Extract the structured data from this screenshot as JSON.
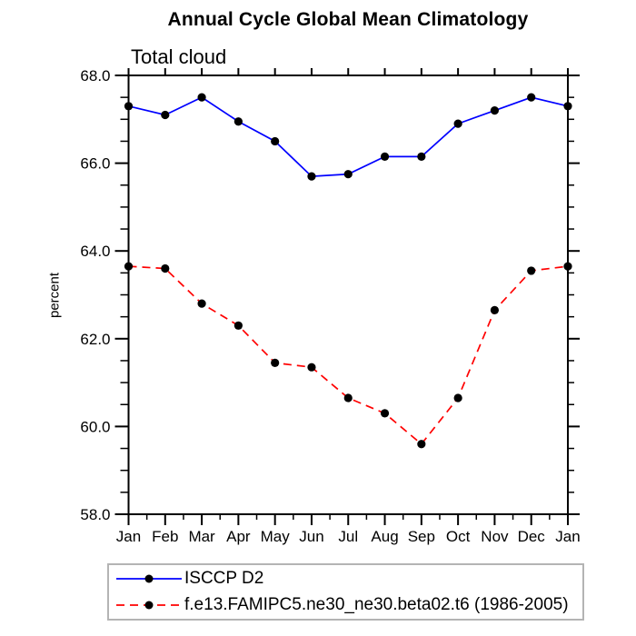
{
  "page": {
    "background": "#ffffff"
  },
  "chart_data": {
    "type": "line",
    "title": "Annual Cycle Global Mean Climatology",
    "subtitle": "Total cloud",
    "ylabel": "percent",
    "xlabel": "",
    "x_categories": [
      "Jan",
      "Feb",
      "Mar",
      "Apr",
      "May",
      "Jun",
      "Jul",
      "Aug",
      "Sep",
      "Oct",
      "Nov",
      "Dec",
      "Jan"
    ],
    "ylim": [
      58.0,
      68.0
    ],
    "ytick_values": [
      58.0,
      60.0,
      62.0,
      64.0,
      66.0,
      68.0
    ],
    "ytick_labels": [
      "58.0",
      "60.0",
      "62.0",
      "64.0",
      "66.0",
      "68.0"
    ],
    "yminor_step": 0.5,
    "grid": false,
    "axis_color": "#000000",
    "marker_shape": "filled-circle",
    "legend_position": "bottom-left-box",
    "legend_border_color": "#b4b4b4",
    "series": [
      {
        "name": "ISCCP D2",
        "color": "#0000ff",
        "line_style": "solid",
        "marker_color": "#000000",
        "values": [
          67.3,
          67.1,
          67.5,
          66.95,
          66.5,
          65.7,
          65.75,
          66.15,
          66.15,
          66.9,
          67.2,
          67.5,
          67.3
        ]
      },
      {
        "name": "f.e13.FAMIPC5.ne30_ne30.beta02.t6 (1986-2005)",
        "color": "#ff0000",
        "line_style": "dashed",
        "marker_color": "#000000",
        "values": [
          63.65,
          63.6,
          62.8,
          62.3,
          61.45,
          61.35,
          60.65,
          60.3,
          59.6,
          60.65,
          62.65,
          63.55,
          63.65
        ]
      }
    ]
  }
}
